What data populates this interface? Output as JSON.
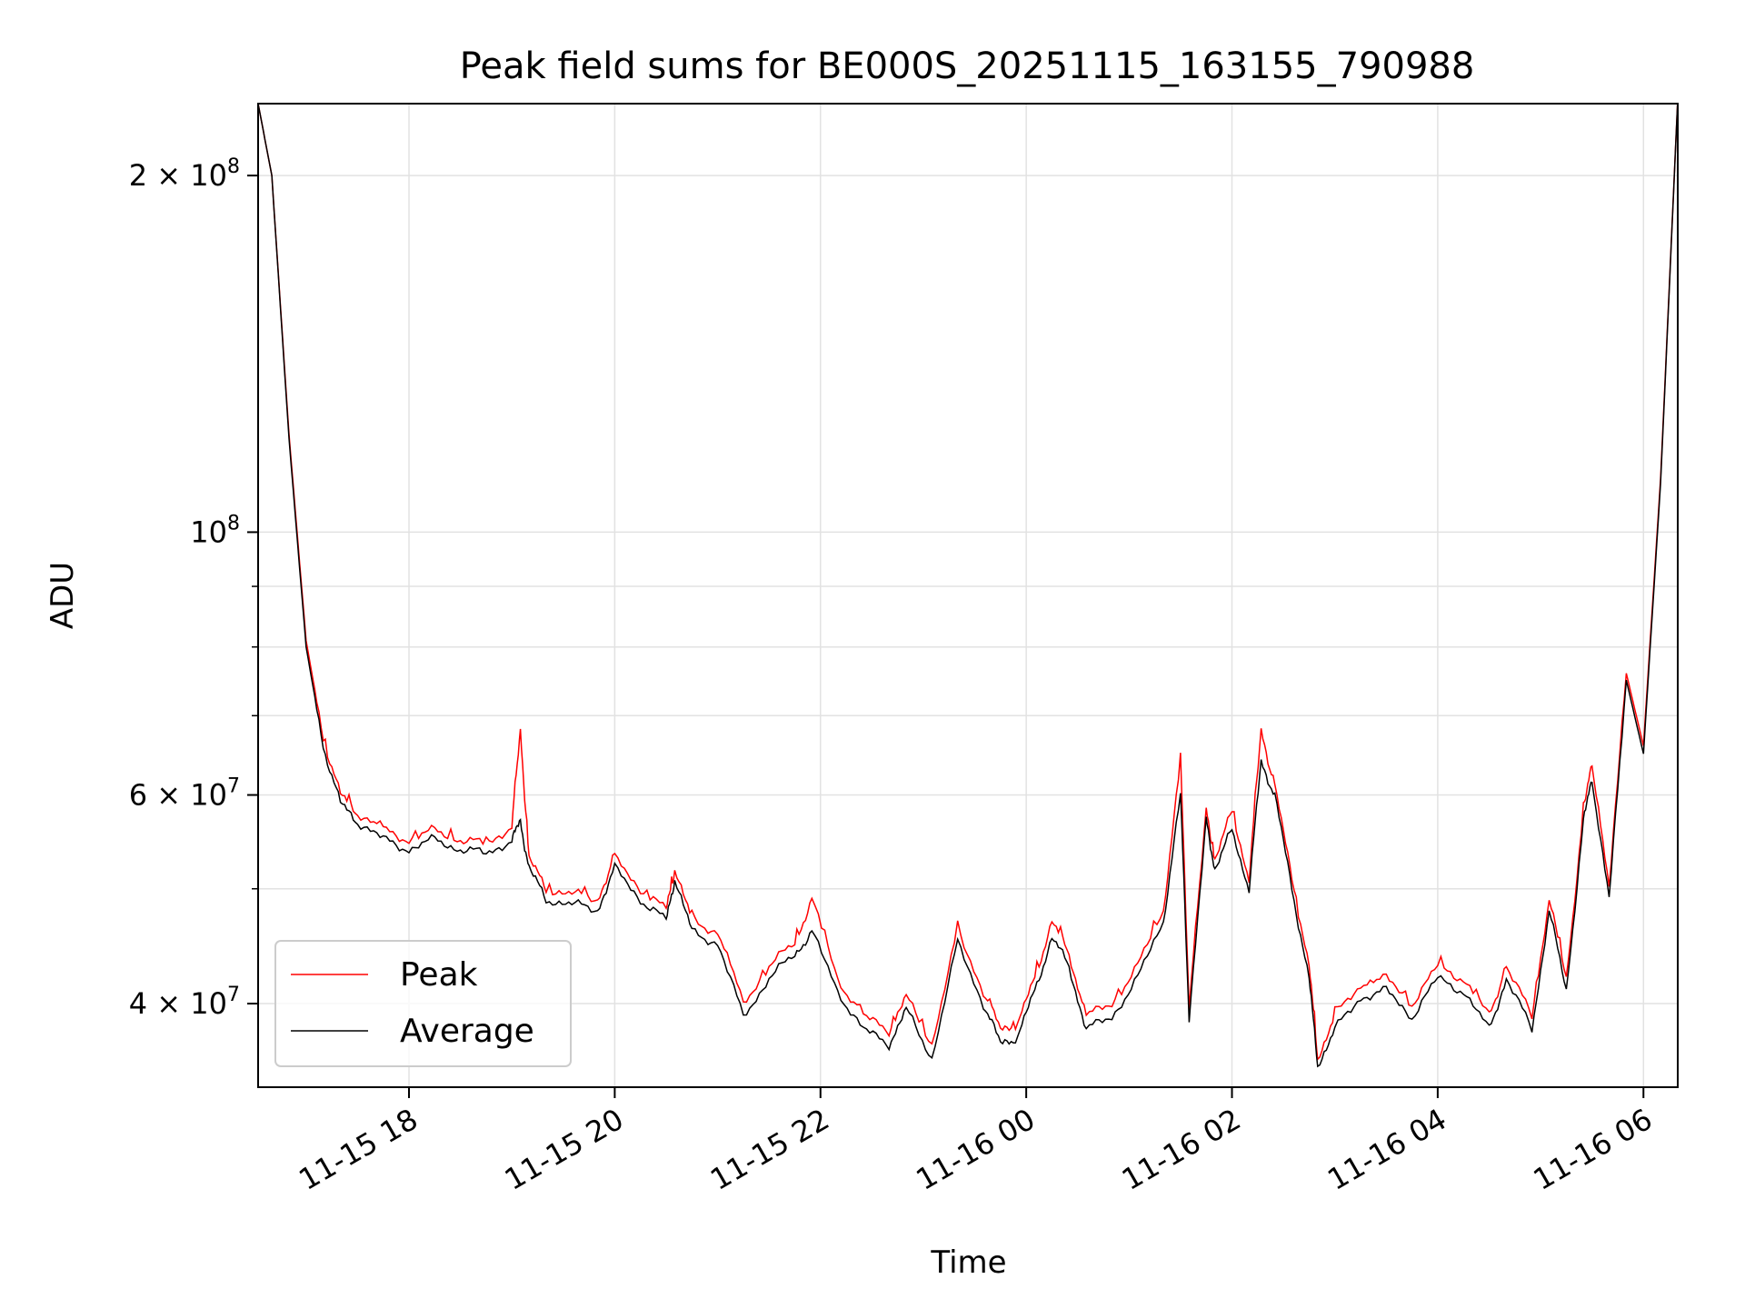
{
  "chart_data": {
    "type": "line",
    "title": "Peak field sums for BE000S_20251115_163155_790988",
    "xlabel": "Time",
    "ylabel": "ADU",
    "yscale": "log",
    "xlim": [
      "2025-11-15 16:32",
      "2025-11-16 06:20"
    ],
    "ylim": [
      34000000,
      230000000
    ],
    "grid": true,
    "legend_position": "lower-left",
    "x_ticks": [
      {
        "x": "2025-11-15 18:00",
        "label": "11-15 18"
      },
      {
        "x": "2025-11-15 20:00",
        "label": "11-15 20"
      },
      {
        "x": "2025-11-15 22:00",
        "label": "11-15 22"
      },
      {
        "x": "2025-11-16 00:00",
        "label": "11-16 00"
      },
      {
        "x": "2025-11-16 02:00",
        "label": "11-16 02"
      },
      {
        "x": "2025-11-16 04:00",
        "label": "11-16 04"
      },
      {
        "x": "2025-11-16 06:00",
        "label": "11-16 06"
      }
    ],
    "y_major_ticks": [
      {
        "y": 40000000,
        "base": "4 × 10",
        "exp": "7"
      },
      {
        "y": 60000000,
        "base": "6 × 10",
        "exp": "7"
      },
      {
        "y": 100000000,
        "base": "10",
        "exp": "8"
      },
      {
        "y": 200000000,
        "base": "2 × 10",
        "exp": "8"
      }
    ],
    "y_minor_ticks": [
      50000000,
      70000000,
      80000000,
      90000000
    ],
    "series": [
      {
        "name": "Peak",
        "color": "#ff0000"
      },
      {
        "name": "Average",
        "color": "#000000"
      }
    ],
    "x": [
      "2025-11-15 16:32",
      "2025-11-15 16:40",
      "2025-11-15 16:50",
      "2025-11-15 17:00",
      "2025-11-15 17:10",
      "2025-11-15 17:20",
      "2025-11-15 17:30",
      "2025-11-15 17:45",
      "2025-11-15 18:00",
      "2025-11-15 18:15",
      "2025-11-15 18:30",
      "2025-11-15 18:45",
      "2025-11-15 19:00",
      "2025-11-15 19:05",
      "2025-11-15 19:10",
      "2025-11-15 19:20",
      "2025-11-15 19:35",
      "2025-11-15 19:50",
      "2025-11-15 20:00",
      "2025-11-15 20:15",
      "2025-11-15 20:30",
      "2025-11-15 20:35",
      "2025-11-15 20:45",
      "2025-11-15 21:00",
      "2025-11-15 21:15",
      "2025-11-15 21:30",
      "2025-11-15 21:45",
      "2025-11-15 21:55",
      "2025-11-15 22:10",
      "2025-11-15 22:25",
      "2025-11-15 22:40",
      "2025-11-15 22:50",
      "2025-11-15 23:05",
      "2025-11-15 23:20",
      "2025-11-15 23:35",
      "2025-11-15 23:45",
      "2025-11-15 23:55",
      "2025-11-16 00:05",
      "2025-11-16 00:15",
      "2025-11-16 00:25",
      "2025-11-16 00:35",
      "2025-11-16 00:50",
      "2025-11-16 01:05",
      "2025-11-16 01:20",
      "2025-11-16 01:30",
      "2025-11-16 01:35",
      "2025-11-16 01:45",
      "2025-11-16 01:50",
      "2025-11-16 02:00",
      "2025-11-16 02:10",
      "2025-11-16 02:17",
      "2025-11-16 02:25",
      "2025-11-16 02:35",
      "2025-11-16 02:45",
      "2025-11-16 02:50",
      "2025-11-16 03:00",
      "2025-11-16 03:15",
      "2025-11-16 03:30",
      "2025-11-16 03:45",
      "2025-11-16 04:00",
      "2025-11-16 04:15",
      "2025-11-16 04:30",
      "2025-11-16 04:40",
      "2025-11-16 04:55",
      "2025-11-16 05:05",
      "2025-11-16 05:15",
      "2025-11-16 05:25",
      "2025-11-16 05:30",
      "2025-11-16 05:40",
      "2025-11-16 05:50",
      "2025-11-16 06:00",
      "2025-11-16 06:10",
      "2025-11-16 06:20"
    ],
    "y_average": [
      230000000,
      200000000,
      120000000,
      80000000,
      66000000,
      59000000,
      57000000,
      55000000,
      54000000,
      55000000,
      54000000,
      53500000,
      55000000,
      57000000,
      52000000,
      49000000,
      48500000,
      48000000,
      52000000,
      49000000,
      47000000,
      51000000,
      46000000,
      45000000,
      39000000,
      42000000,
      44000000,
      46000000,
      41000000,
      38000000,
      37000000,
      39500000,
      36000000,
      45000000,
      40000000,
      37000000,
      37500000,
      41000000,
      45500000,
      43000000,
      38000000,
      39000000,
      42000000,
      47000000,
      60000000,
      39000000,
      57000000,
      52000000,
      56000000,
      50000000,
      64000000,
      60000000,
      50000000,
      42000000,
      35500000,
      38000000,
      40500000,
      41000000,
      39000000,
      42000000,
      41000000,
      38000000,
      42000000,
      38000000,
      48000000,
      41000000,
      57000000,
      62000000,
      49000000,
      75000000,
      65000000,
      110000000,
      232000000
    ],
    "y_peak": [
      230000000,
      200000000,
      121000000,
      81000000,
      67000000,
      60000000,
      58000000,
      56000000,
      55000000,
      56000000,
      55000000,
      54500000,
      56500000,
      68000000,
      53000000,
      50000000,
      49500000,
      49000000,
      53000000,
      50000000,
      48000000,
      52000000,
      47000000,
      46000000,
      40000000,
      43000000,
      45000000,
      49000000,
      42000000,
      39000000,
      38000000,
      40500000,
      37000000,
      46000000,
      41000000,
      38000000,
      38500000,
      42000000,
      47000000,
      44000000,
      39000000,
      40000000,
      43000000,
      48000000,
      64000000,
      40000000,
      58000000,
      53000000,
      58000000,
      51000000,
      68000000,
      61000000,
      51000000,
      43000000,
      36000000,
      39000000,
      41500000,
      42000000,
      40000000,
      43000000,
      42000000,
      39000000,
      43000000,
      39000000,
      49000000,
      42000000,
      58000000,
      64000000,
      50000000,
      76000000,
      66000000,
      111000000,
      232000000
    ]
  }
}
